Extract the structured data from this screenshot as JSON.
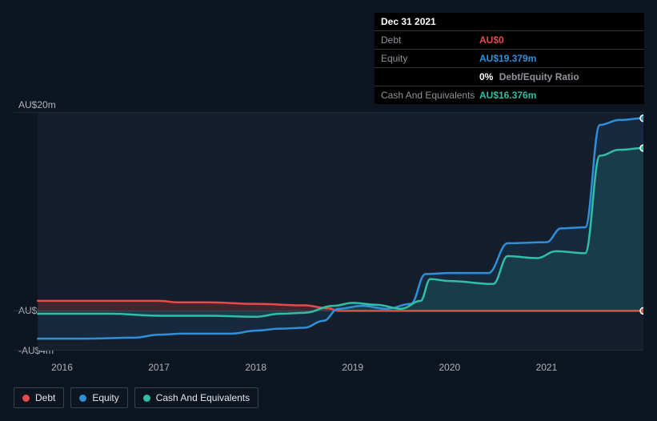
{
  "tooltip": {
    "date": "Dec 31 2021",
    "rows": [
      {
        "label": "Debt",
        "value": "AU$0",
        "color": "#e84a4a"
      },
      {
        "label": "Equity",
        "value": "AU$19.379m",
        "color": "#2f8fd9"
      },
      {
        "label": "",
        "value": "0%",
        "sublabel": "Debt/Equity Ratio",
        "color": "#ffffff"
      },
      {
        "label": "Cash And Equivalents",
        "value": "AU$16.376m",
        "color": "#2fbfa5"
      }
    ]
  },
  "chart": {
    "type": "line-area",
    "background_color": "#0d1521",
    "plot_band_color": "#151e2d",
    "grid_color": "#333b47",
    "axis_label_color": "#aeb3ba",
    "label_fontsize": 12,
    "xlim": [
      2015.5,
      2022
    ],
    "ylim": [
      -4,
      20
    ],
    "yticks": [
      {
        "v": 20,
        "label": "AU$20m"
      },
      {
        "v": 0,
        "label": "AU$0"
      },
      {
        "v": -4,
        "label": "-AU$4m"
      }
    ],
    "xticks": [
      {
        "v": 2016,
        "label": "2016"
      },
      {
        "v": 2017,
        "label": "2017"
      },
      {
        "v": 2018,
        "label": "2018"
      },
      {
        "v": 2019,
        "label": "2019"
      },
      {
        "v": 2020,
        "label": "2020"
      },
      {
        "v": 2021,
        "label": "2021"
      }
    ],
    "plot_band": [
      2015.75,
      2022
    ],
    "line_width": 2.5,
    "series": [
      {
        "name": "Debt",
        "color": "#e84a4a",
        "fill": "rgba(200,60,60,0.25)",
        "fill_to_zero": true,
        "end_marker": true,
        "points": [
          [
            2015.75,
            1.0
          ],
          [
            2016.0,
            1.0
          ],
          [
            2016.5,
            1.0
          ],
          [
            2017.0,
            1.0
          ],
          [
            2017.2,
            0.85
          ],
          [
            2017.5,
            0.85
          ],
          [
            2018.0,
            0.7
          ],
          [
            2018.5,
            0.55
          ],
          [
            2018.75,
            0.25
          ],
          [
            2018.85,
            0.0
          ],
          [
            2019.0,
            0.0
          ],
          [
            2020.0,
            0.0
          ],
          [
            2021.0,
            0.0
          ],
          [
            2022.0,
            0.0
          ]
        ]
      },
      {
        "name": "Equity",
        "color": "#2f8fd9",
        "fill": "rgba(47,143,217,0.10)",
        "fill_to_zero": true,
        "end_marker": true,
        "points": [
          [
            2015.75,
            -2.8
          ],
          [
            2016.25,
            -2.8
          ],
          [
            2016.75,
            -2.7
          ],
          [
            2017.0,
            -2.4
          ],
          [
            2017.25,
            -2.3
          ],
          [
            2017.75,
            -2.3
          ],
          [
            2018.0,
            -2.0
          ],
          [
            2018.25,
            -1.8
          ],
          [
            2018.5,
            -1.7
          ],
          [
            2018.7,
            -1.0
          ],
          [
            2018.85,
            0.2
          ],
          [
            2019.1,
            0.5
          ],
          [
            2019.35,
            0.2
          ],
          [
            2019.6,
            0.7
          ],
          [
            2019.75,
            3.7
          ],
          [
            2020.0,
            3.8
          ],
          [
            2020.4,
            3.8
          ],
          [
            2020.6,
            6.8
          ],
          [
            2021.0,
            6.9
          ],
          [
            2021.15,
            8.3
          ],
          [
            2021.4,
            8.4
          ],
          [
            2021.55,
            18.7
          ],
          [
            2021.75,
            19.2
          ],
          [
            2022.0,
            19.379
          ]
        ]
      },
      {
        "name": "Cash And Equivalents",
        "color": "#2fbfa5",
        "fill": "rgba(47,191,165,0.12)",
        "fill_to_zero": true,
        "end_marker": true,
        "points": [
          [
            2015.75,
            -0.3
          ],
          [
            2016.5,
            -0.3
          ],
          [
            2017.0,
            -0.5
          ],
          [
            2017.5,
            -0.5
          ],
          [
            2018.0,
            -0.6
          ],
          [
            2018.25,
            -0.3
          ],
          [
            2018.5,
            -0.2
          ],
          [
            2018.8,
            0.5
          ],
          [
            2019.0,
            0.8
          ],
          [
            2019.25,
            0.6
          ],
          [
            2019.5,
            0.2
          ],
          [
            2019.7,
            1.0
          ],
          [
            2019.8,
            3.2
          ],
          [
            2020.0,
            3.0
          ],
          [
            2020.45,
            2.7
          ],
          [
            2020.6,
            5.5
          ],
          [
            2020.9,
            5.3
          ],
          [
            2021.1,
            6.0
          ],
          [
            2021.4,
            5.8
          ],
          [
            2021.55,
            15.6
          ],
          [
            2021.75,
            16.2
          ],
          [
            2022.0,
            16.376
          ]
        ]
      }
    ]
  },
  "legend": [
    {
      "name": "Debt",
      "color": "#e84a4a"
    },
    {
      "name": "Equity",
      "color": "#2f8fd9"
    },
    {
      "name": "Cash And Equivalents",
      "color": "#2fbfa5"
    }
  ]
}
